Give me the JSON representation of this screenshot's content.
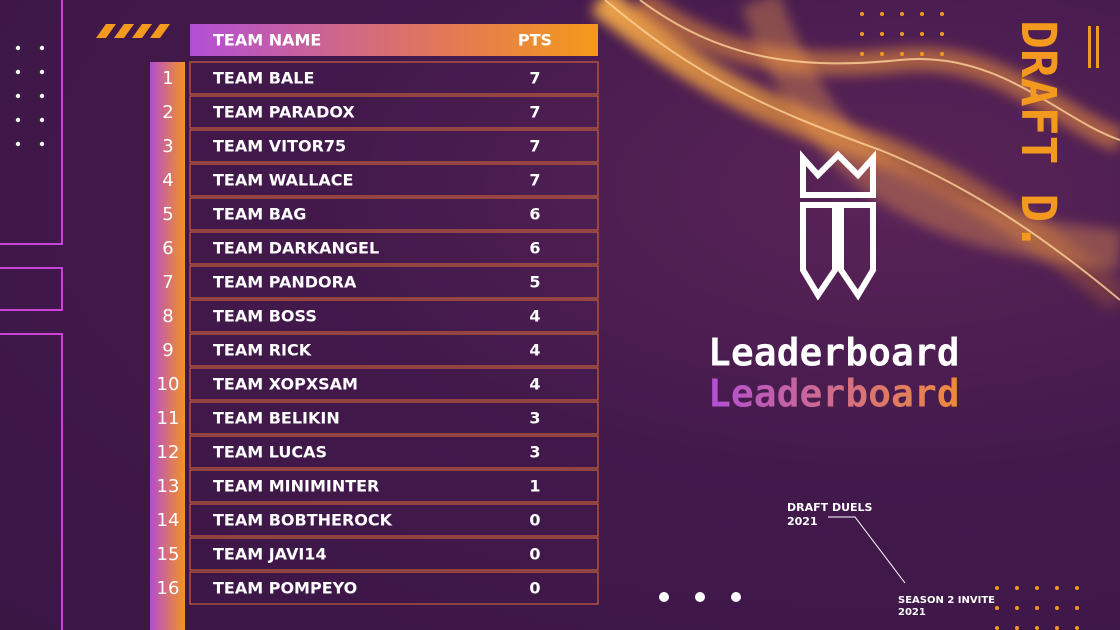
{
  "header": {
    "columns": [
      "TEAM NAME",
      "PTS"
    ]
  },
  "table": {
    "rows": [
      [
        "1",
        "TEAM BALE",
        "7"
      ],
      [
        "2",
        "TEAM PARADOX",
        "7"
      ],
      [
        "3",
        "TEAM VITOR75",
        "7"
      ],
      [
        "4",
        "TEAM WALLACE",
        "7"
      ],
      [
        "5",
        "TEAM BAG",
        "6"
      ],
      [
        "6",
        "TEAM DARKANGEL",
        "6"
      ],
      [
        "7",
        "TEAM PANDORA",
        "5"
      ],
      [
        "8",
        "TEAM BOSS",
        "4"
      ],
      [
        "9",
        "TEAM RICK",
        "4"
      ],
      [
        "10",
        "TEAM XOPXSAM",
        "4"
      ],
      [
        "11",
        "TEAM BELIKIN",
        "3"
      ],
      [
        "12",
        "TEAM LUCAS",
        "3"
      ],
      [
        "13",
        "TEAM MINIMINTER",
        "1"
      ],
      [
        "14",
        "TEAM BOBTHEROCK",
        "0"
      ],
      [
        "15",
        "TEAM JAVI14",
        "0"
      ],
      [
        "16",
        "TEAM POMPEYO",
        "0"
      ]
    ]
  },
  "brand": {
    "vertical": "DRAFT D.",
    "title": "Leaderboard",
    "title_echo": "Leaderboard"
  },
  "footer": {
    "event": "DRAFT DUELS 2021",
    "season": "SEASON 2 INVITE 2021"
  }
}
